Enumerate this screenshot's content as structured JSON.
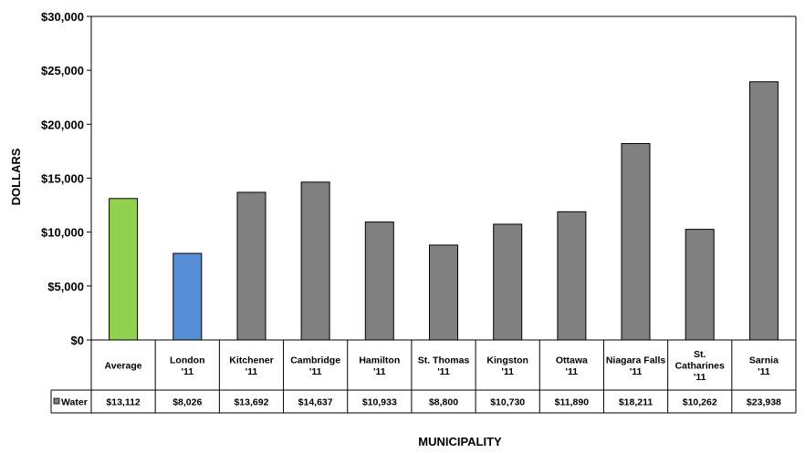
{
  "chart_data": {
    "type": "bar",
    "title": "",
    "xlabel": "MUNICIPALITY",
    "ylabel": "DOLLARS",
    "ylim": [
      0,
      30000
    ],
    "yticks": [
      "$0",
      "$5,000",
      "$10,000",
      "$15,000",
      "$20,000",
      "$25,000",
      "$30,000"
    ],
    "grid": false,
    "categories": [
      [
        "Average"
      ],
      [
        "London",
        "'11"
      ],
      [
        "Kitchener",
        "'11"
      ],
      [
        "Cambridge",
        "'11"
      ],
      [
        "Hamilton",
        "'11"
      ],
      [
        "St. Thomas",
        "'11"
      ],
      [
        "Kingston",
        "'11"
      ],
      [
        "Ottawa",
        "'11"
      ],
      [
        "Niagara Falls",
        "'11"
      ],
      [
        "St.",
        "Catharines",
        "'11"
      ],
      [
        "Sarnia",
        "'11"
      ]
    ],
    "series": [
      {
        "name": "Water",
        "values": [
          13112,
          8026,
          13692,
          14637,
          10933,
          8800,
          10730,
          11890,
          18211,
          10262,
          23938
        ],
        "labels": [
          "$13,112",
          "$8,026",
          "$13,692",
          "$14,637",
          "$10,933",
          "$8,800",
          "$10,730",
          "$11,890",
          "$18,211",
          "$10,262",
          "$23,938"
        ]
      }
    ],
    "colors": {
      "default": "#808080",
      "highlight_0": "#92D050",
      "highlight_1": "#558ED5",
      "legend_key": "#808080"
    },
    "legend": "data-table"
  }
}
